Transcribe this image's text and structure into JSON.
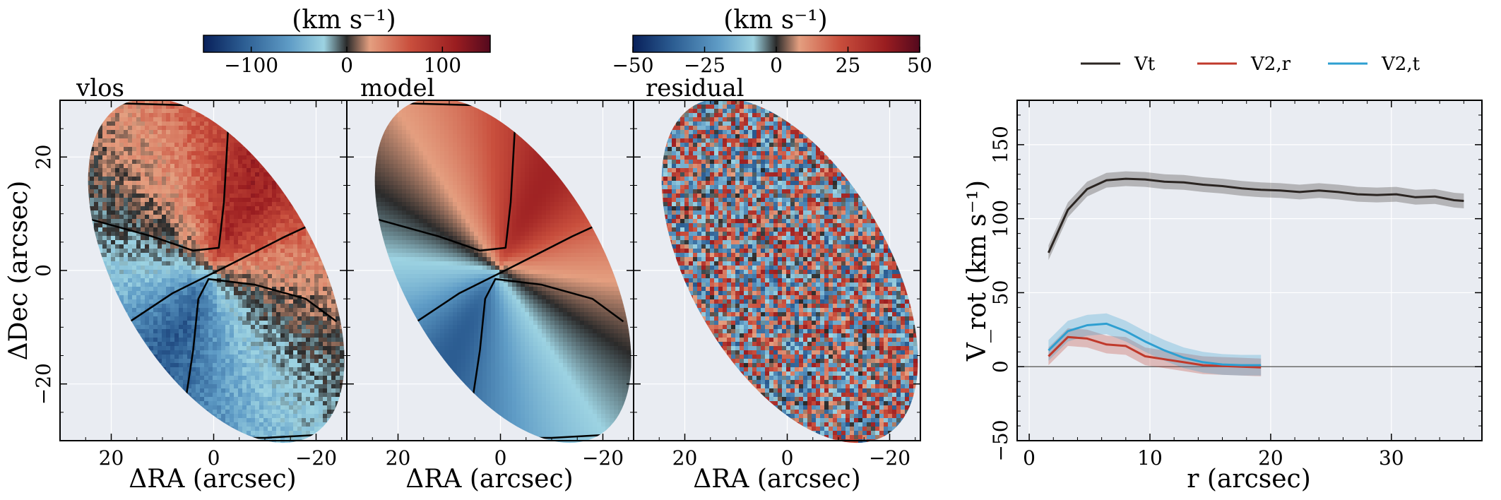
{
  "chart_data": [
    {
      "type": "heatmap",
      "panel": "vlos",
      "title": "vlos",
      "xlabel": "ΔRA (arcsec)",
      "ylabel": "ΔDec (arcsec)",
      "xlim": [
        30,
        -26
      ],
      "ylim": [
        -30,
        30
      ],
      "x_ticks": [
        "20",
        "0",
        "−20"
      ],
      "y_ticks": [
        "20",
        "0",
        "−20"
      ],
      "colorbar": {
        "unit": "(km s⁻¹)",
        "range": [
          -150,
          150
        ],
        "ticks": [
          "−100",
          "0",
          "100"
        ],
        "cmap": "RdBu_r"
      },
      "contours": true
    },
    {
      "type": "heatmap",
      "panel": "model",
      "title": "model",
      "xlabel": "ΔRA (arcsec)",
      "xlim": [
        30,
        -26
      ],
      "ylim": [
        -30,
        30
      ],
      "x_ticks": [
        "20",
        "0",
        "−20"
      ],
      "colorbar": {
        "unit": "(km s⁻¹)",
        "range": [
          -150,
          150
        ],
        "ticks": [
          "−100",
          "0",
          "100"
        ],
        "cmap": "RdBu_r"
      },
      "contours": true
    },
    {
      "type": "heatmap",
      "panel": "residual",
      "title": "residual",
      "xlabel": "ΔRA (arcsec)",
      "xlim": [
        30,
        -26
      ],
      "ylim": [
        -30,
        30
      ],
      "x_ticks": [
        "20",
        "0",
        "−20"
      ],
      "colorbar": {
        "unit": "(km s⁻¹)",
        "range": [
          -50,
          50
        ],
        "ticks": [
          "−50",
          "−25",
          "0",
          "25",
          "50"
        ],
        "cmap": "RdBu_r"
      }
    },
    {
      "type": "line",
      "xlabel": "r (arcsec)",
      "ylabel": "V_rot (km s⁻¹)",
      "xlim": [
        -1,
        37.5
      ],
      "ylim": [
        -50,
        180
      ],
      "x_ticks": [
        "0",
        "10",
        "20",
        "30"
      ],
      "y_ticks": [
        "−50",
        "0",
        "50",
        "100",
        "150"
      ],
      "grid": true,
      "legend_position": "top",
      "series": [
        {
          "name": "Vt",
          "color": "#2b2522",
          "x": [
            1.6,
            3.2,
            4.8,
            6.4,
            8.0,
            9.6,
            11.2,
            12.8,
            14.4,
            16.0,
            17.6,
            19.2,
            20.8,
            22.4,
            24.0,
            25.6,
            27.2,
            28.8,
            30.4,
            32.0,
            33.6,
            35.2,
            36.0
          ],
          "y": [
            77,
            106,
            120,
            126,
            127,
            126.5,
            125,
            124.5,
            123,
            122,
            120.5,
            119.5,
            119,
            118,
            119,
            118,
            116.5,
            116,
            116.5,
            114.5,
            115,
            112.5,
            112
          ],
          "band": 5
        },
        {
          "name": "V2,r",
          "color": "#c0392b",
          "x": [
            1.6,
            3.2,
            4.8,
            6.4,
            8.0,
            9.6,
            11.2,
            12.8,
            14.4,
            16.0,
            17.6,
            19.2
          ],
          "y": [
            7,
            20,
            19,
            15,
            14,
            7,
            5,
            3,
            1,
            0.5,
            0,
            -0.5
          ],
          "band": 6
        },
        {
          "name": "V2,t",
          "color": "#2e9fd1",
          "x": [
            1.6,
            3.2,
            4.8,
            6.4,
            8.0,
            9.6,
            11.2,
            12.8,
            14.4,
            16.0,
            17.6,
            19.2
          ],
          "y": [
            11,
            24,
            28,
            29,
            24,
            17,
            11,
            6,
            3,
            1.5,
            1,
            1
          ],
          "band": 7
        }
      ]
    }
  ],
  "colors": {
    "panel_bg": "#e9ecf2",
    "grid": "#ffffff",
    "cmap": [
      "#08205a",
      "#2c5d92",
      "#5f9cc6",
      "#9dd3e2",
      "#2a2a2a",
      "#e49f80",
      "#c94f3d",
      "#9a1d20",
      "#54091e"
    ]
  }
}
